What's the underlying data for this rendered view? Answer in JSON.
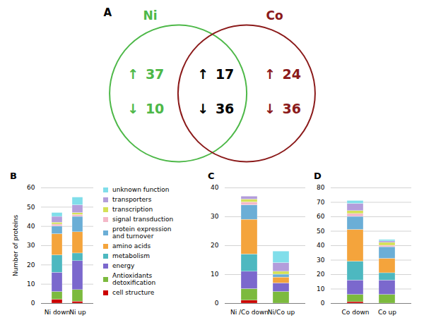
{
  "chart_data": [
    {
      "type": "venn",
      "title": "A",
      "categories": [
        "↑",
        "↓"
      ],
      "series": [
        {
          "name": "Ni",
          "color": "#4db848",
          "values": [
            37,
            10
          ]
        },
        {
          "name": "Co",
          "color": "#8b1a1a",
          "values": [
            24,
            36
          ]
        }
      ],
      "intersection": {
        "color": "black",
        "values": [
          17,
          36
        ]
      }
    },
    {
      "type": "bar",
      "title": "B",
      "stacked": true,
      "grid": true,
      "legend": "right",
      "ylabel": "Number of proteins",
      "categories": [
        "Ni down",
        "Ni up"
      ],
      "ylim": [
        0,
        60
      ],
      "yticks": [
        0,
        10,
        20,
        30,
        40,
        50,
        60
      ],
      "series": [
        {
          "name": "cell structure",
          "color": "#cc0000",
          "values": [
            2,
            1
          ]
        },
        {
          "name": "Antioxidants\ndetoxification",
          "color": "#7cba3e",
          "values": [
            4,
            6
          ]
        },
        {
          "name": "energy",
          "color": "#7b68cd",
          "values": [
            10,
            15
          ]
        },
        {
          "name": "metabolism",
          "color": "#4db8c0",
          "values": [
            9,
            4
          ]
        },
        {
          "name": "amino acids",
          "color": "#f4a43c",
          "values": [
            11,
            11
          ]
        },
        {
          "name": "protein expression\nand turnover",
          "color": "#6baed6",
          "values": [
            4,
            8
          ]
        },
        {
          "name": "signal transduction",
          "color": "#f4b8c8",
          "values": [
            1,
            1
          ]
        },
        {
          "name": "transcription",
          "color": "#d4e157",
          "values": [
            1,
            1
          ]
        },
        {
          "name": "transporters",
          "color": "#b39ddb",
          "values": [
            3,
            4
          ]
        },
        {
          "name": "unknown function",
          "color": "#80deea",
          "values": [
            2,
            4
          ]
        }
      ]
    },
    {
      "type": "bar",
      "title": "C",
      "stacked": true,
      "grid": true,
      "categories": [
        "Ni /Co down",
        "Ni/Co up"
      ],
      "ylim": [
        0,
        40
      ],
      "yticks": [
        0,
        10,
        20,
        30,
        40
      ],
      "series": [
        {
          "name": "cell structure",
          "color": "#cc0000",
          "values": [
            1,
            0
          ]
        },
        {
          "name": "Antioxidants\ndetoxification",
          "color": "#7cba3e",
          "values": [
            4,
            4
          ]
        },
        {
          "name": "energy",
          "color": "#7b68cd",
          "values": [
            6,
            3
          ]
        },
        {
          "name": "metabolism",
          "color": "#4db8c0",
          "values": [
            6,
            0
          ]
        },
        {
          "name": "amino acids",
          "color": "#f4a43c",
          "values": [
            12,
            2
          ]
        },
        {
          "name": "protein expression\nand turnover",
          "color": "#6baed6",
          "values": [
            5,
            1
          ]
        },
        {
          "name": "signal transduction",
          "color": "#f4b8c8",
          "values": [
            1,
            0
          ]
        },
        {
          "name": "transcription",
          "color": "#d4e157",
          "values": [
            1,
            1
          ]
        },
        {
          "name": "transporters",
          "color": "#b39ddb",
          "values": [
            1,
            3
          ]
        },
        {
          "name": "unknown function",
          "color": "#80deea",
          "values": [
            0,
            4
          ]
        }
      ]
    },
    {
      "type": "bar",
      "title": "D",
      "stacked": true,
      "grid": true,
      "categories": [
        "Co down",
        "Co up"
      ],
      "ylim": [
        0,
        80
      ],
      "yticks": [
        0,
        10,
        20,
        30,
        40,
        50,
        60,
        70,
        80
      ],
      "series": [
        {
          "name": "cell structure",
          "color": "#cc0000",
          "values": [
            1,
            0
          ]
        },
        {
          "name": "Antioxidants\ndetoxification",
          "color": "#7cba3e",
          "values": [
            5,
            6
          ]
        },
        {
          "name": "energy",
          "color": "#7b68cd",
          "values": [
            10,
            10
          ]
        },
        {
          "name": "metabolism",
          "color": "#4db8c0",
          "values": [
            13,
            5
          ]
        },
        {
          "name": "amino acids",
          "color": "#f4a43c",
          "values": [
            22,
            10
          ]
        },
        {
          "name": "protein expression\nand turnover",
          "color": "#6baed6",
          "values": [
            9,
            8
          ]
        },
        {
          "name": "signal transduction",
          "color": "#f4b8c8",
          "values": [
            2,
            1
          ]
        },
        {
          "name": "transcription",
          "color": "#d4e157",
          "values": [
            2,
            2
          ]
        },
        {
          "name": "transporters",
          "color": "#b39ddb",
          "values": [
            5,
            1
          ]
        },
        {
          "name": "unknown function",
          "color": "#80deea",
          "values": [
            2,
            1
          ]
        }
      ]
    }
  ]
}
